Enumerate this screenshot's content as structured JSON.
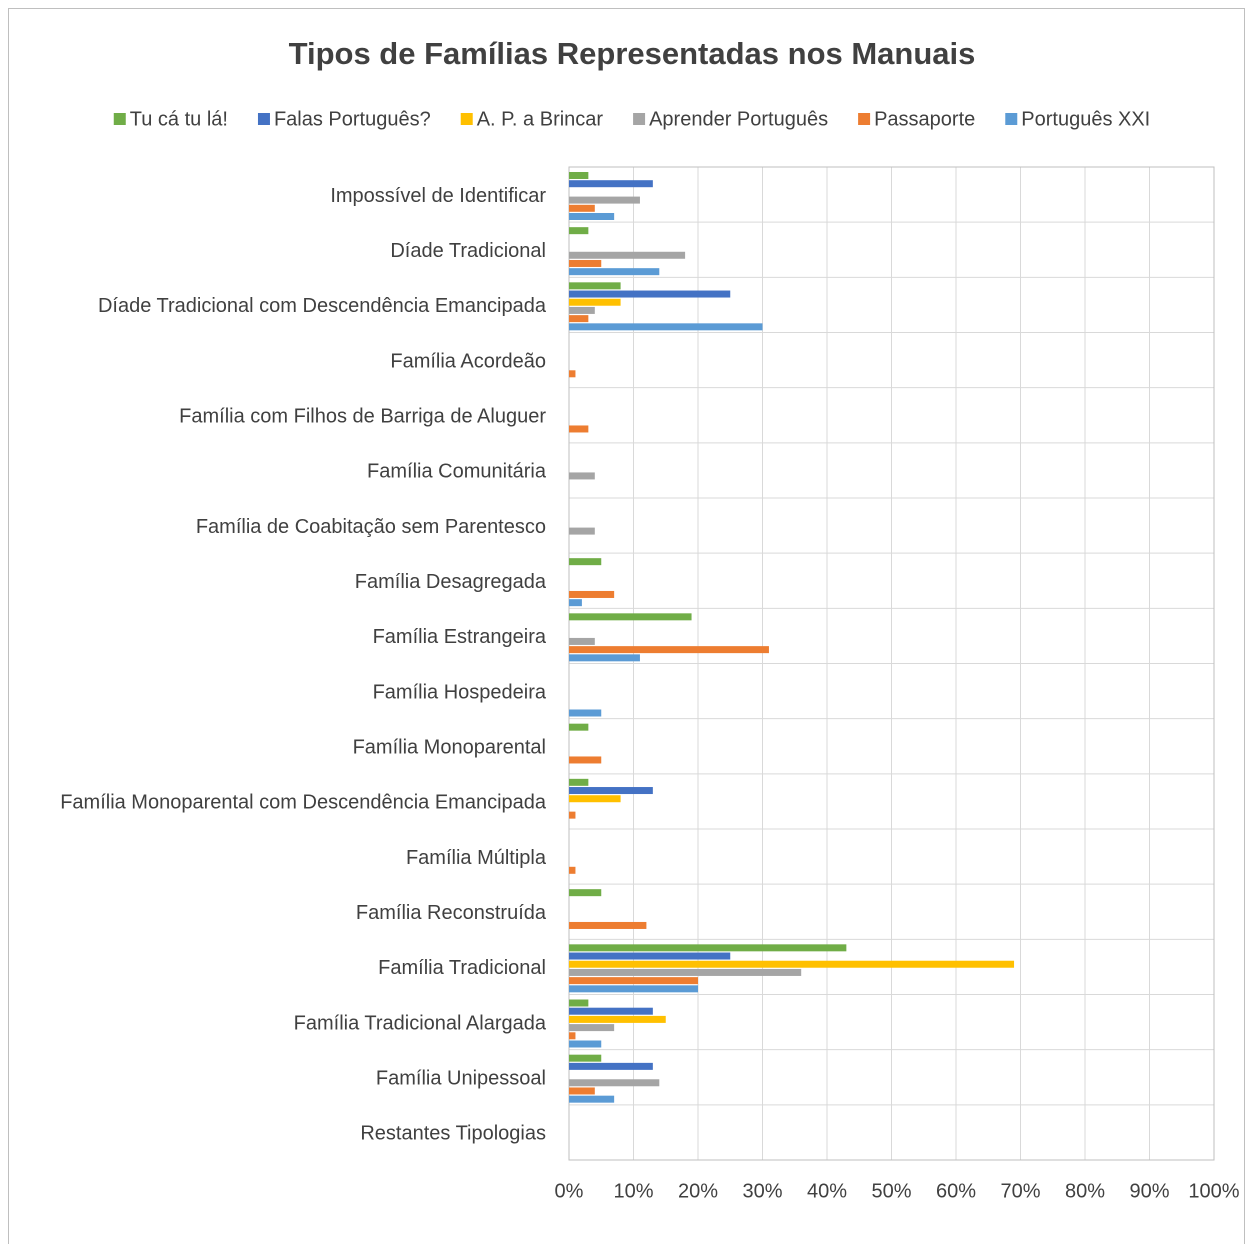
{
  "chart_data": {
    "type": "hbar",
    "title": "Tipos de Famílias Representadas nos Manuais",
    "categories": [
      "Impossível de Identificar",
      "Díade Tradicional",
      "Díade Tradicional com Descendência Emancipada",
      "Família Acordeão",
      "Família com Filhos de Barriga de Aluguer",
      "Família Comunitária",
      "Família de Coabitação sem Parentesco",
      "Família Desagregada",
      "Família Estrangeira",
      "Família Hospedeira",
      "Família Monoparental",
      "Família Monoparental com Descendência Emancipada",
      "Família Múltipla",
      "Família Reconstruída",
      "Família Tradicional",
      "Família Tradicional Alargada",
      "Família Unipessoal",
      "Restantes Tipologias"
    ],
    "series": [
      {
        "name": "Tu cá tu lá!",
        "color": "#70ad47",
        "values": [
          3,
          3,
          8,
          0,
          0,
          0,
          0,
          5,
          19,
          0,
          3,
          3,
          0,
          5,
          43,
          3,
          5,
          0
        ]
      },
      {
        "name": "Falas Português?",
        "color": "#4472c4",
        "values": [
          13,
          0,
          25,
          0,
          0,
          0,
          0,
          0,
          0,
          0,
          0,
          13,
          0,
          0,
          25,
          13,
          13,
          0
        ]
      },
      {
        "name": "A. P. a Brincar",
        "color": "#ffc000",
        "values": [
          0,
          0,
          8,
          0,
          0,
          0,
          0,
          0,
          0,
          0,
          0,
          8,
          0,
          0,
          69,
          15,
          0,
          0
        ]
      },
      {
        "name": "Aprender Português",
        "color": "#a5a5a5",
        "values": [
          11,
          18,
          4,
          0,
          0,
          4,
          4,
          0,
          4,
          0,
          0,
          0,
          0,
          0,
          36,
          7,
          14,
          0
        ]
      },
      {
        "name": "Passaporte",
        "color": "#ed7d31",
        "values": [
          4,
          5,
          3,
          1,
          3,
          0,
          0,
          7,
          31,
          0,
          5,
          1,
          1,
          12,
          20,
          1,
          4,
          0
        ]
      },
      {
        "name": "Português XXI",
        "color": "#5b9bd5",
        "values": [
          7,
          14,
          30,
          0,
          0,
          0,
          0,
          2,
          11,
          5,
          0,
          0,
          0,
          0,
          20,
          5,
          7,
          0
        ]
      }
    ],
    "xlim": [
      0,
      100
    ],
    "xticks": [
      {
        "value": 0,
        "label": "0%"
      },
      {
        "value": 10,
        "label": "10%"
      },
      {
        "value": 20,
        "label": "20%"
      },
      {
        "value": 30,
        "label": "30%"
      },
      {
        "value": 40,
        "label": "40%"
      },
      {
        "value": 50,
        "label": "50%"
      },
      {
        "value": 60,
        "label": "60%"
      },
      {
        "value": 70,
        "label": "70%"
      },
      {
        "value": 80,
        "label": "80%"
      },
      {
        "value": 90,
        "label": "90%"
      },
      {
        "value": 100,
        "label": "100%"
      }
    ],
    "grid": true,
    "legend": "top"
  }
}
